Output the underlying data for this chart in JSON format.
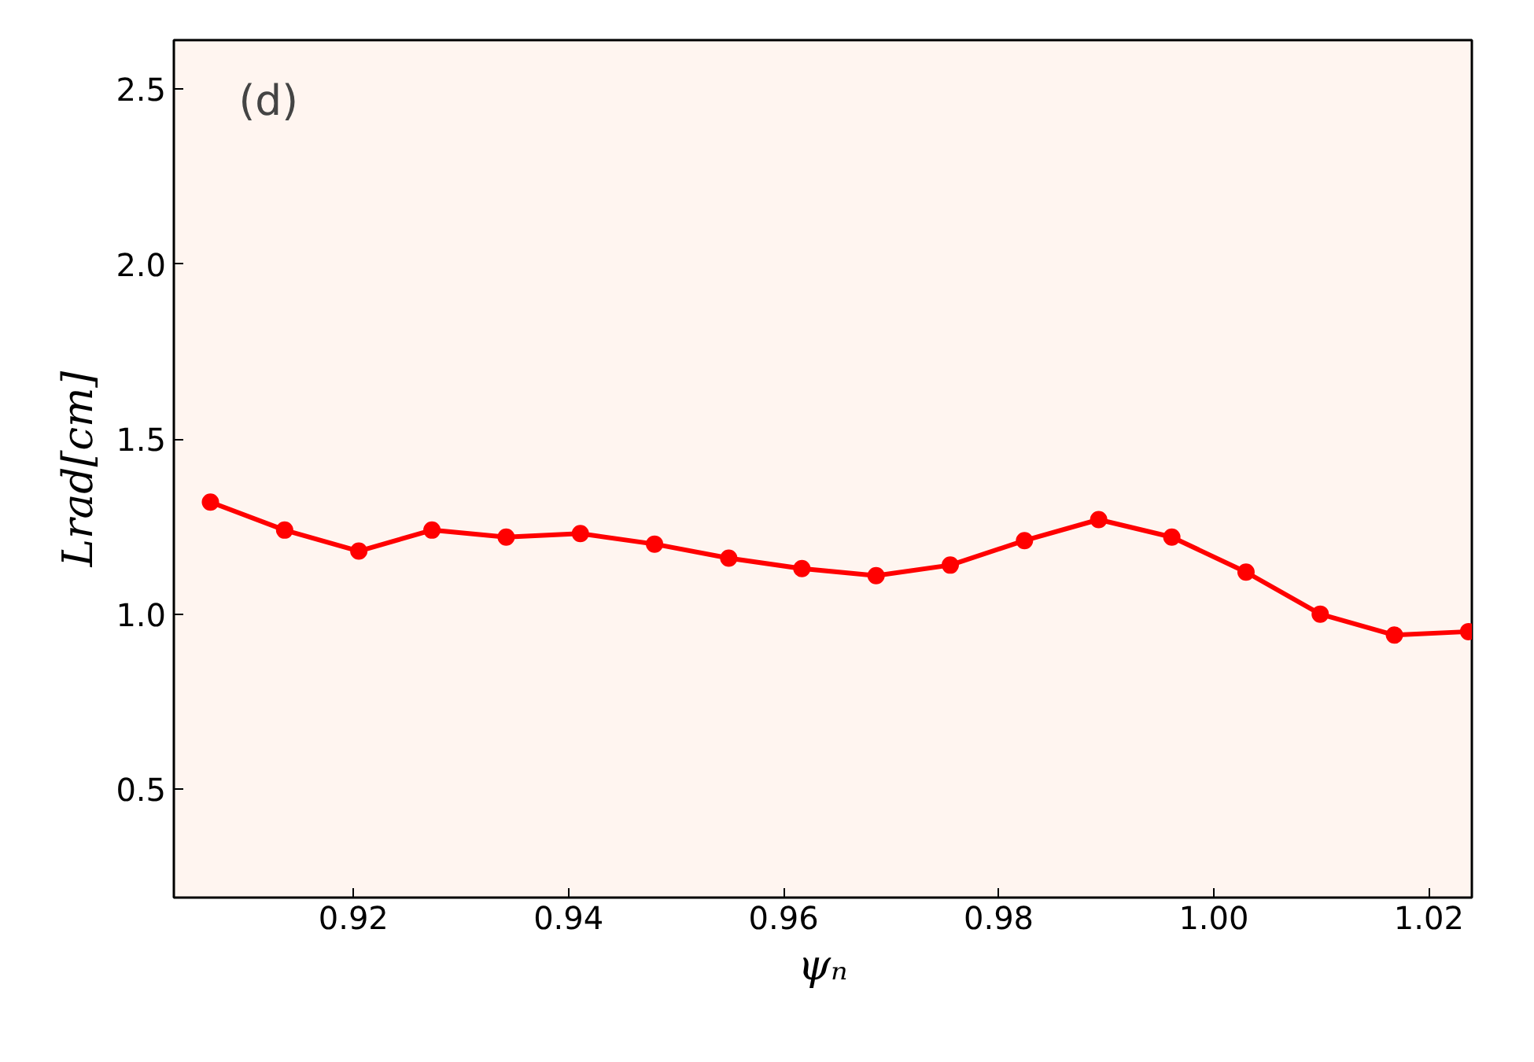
{
  "chart_data": {
    "type": "line",
    "xlabel": "ψₙ",
    "ylabel": "Lrad[cm]",
    "annotations": [
      "(d)"
    ],
    "x": [
      0.9067,
      0.9136,
      0.9205,
      0.9273,
      0.9342,
      0.9411,
      0.948,
      0.9549,
      0.9617,
      0.9686,
      0.9755,
      0.9824,
      0.9893,
      0.9961,
      1.003,
      1.0099,
      1.0168,
      1.0237
    ],
    "series": [
      {
        "color": "#ff0000",
        "values": [
          1.32,
          1.24,
          1.18,
          1.24,
          1.22,
          1.23,
          1.2,
          1.16,
          1.13,
          1.11,
          1.14,
          1.21,
          1.27,
          1.22,
          1.12,
          1.0,
          0.94,
          0.95
        ]
      }
    ],
    "xlim": [
      0.9033,
      1.024
    ],
    "ylim": [
      0.19,
      2.64
    ],
    "xticks": [
      {
        "value": 0.92,
        "label": "0.92"
      },
      {
        "value": 0.94,
        "label": "0.94"
      },
      {
        "value": 0.96,
        "label": "0.96"
      },
      {
        "value": 0.98,
        "label": "0.98"
      },
      {
        "value": 1.0,
        "label": "1.00"
      },
      {
        "value": 1.02,
        "label": "1.02"
      }
    ],
    "yticks": [
      {
        "value": 0.5,
        "label": "0.5"
      },
      {
        "value": 1.0,
        "label": "1.0"
      },
      {
        "value": 1.5,
        "label": "1.5"
      },
      {
        "value": 2.0,
        "label": "2.0"
      },
      {
        "value": 2.5,
        "label": "2.5"
      }
    ],
    "grid": false,
    "marker": "circle",
    "line_style": "solid"
  }
}
